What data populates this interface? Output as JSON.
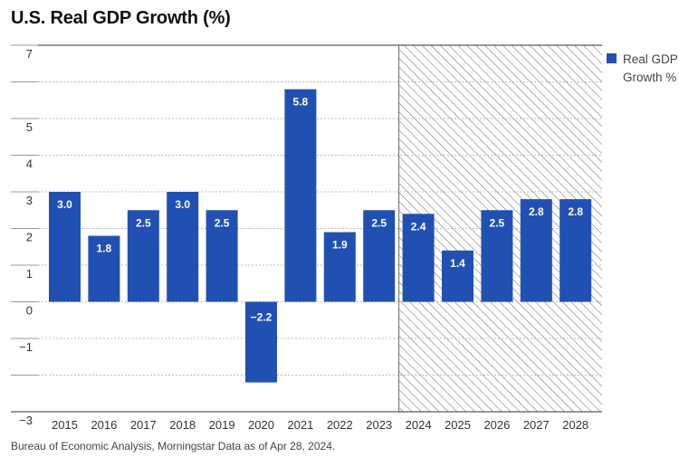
{
  "title": "U.S. Real GDP Growth (%)",
  "footnote": "Bureau of Economic Analysis, Morningstar Data as of Apr 28, 2024.",
  "colors": {
    "bar": "#2150b3",
    "grid": "#bbbbbb",
    "axis": "#333333",
    "hatch": "#666666"
  },
  "chart_data": {
    "type": "bar",
    "title": "U.S. Real GDP Growth (%)",
    "xlabel": "",
    "ylabel": "",
    "categories": [
      "2015",
      "2016",
      "2017",
      "2018",
      "2019",
      "2020",
      "2021",
      "2022",
      "2023",
      "2024",
      "2025",
      "2026",
      "2027",
      "2028"
    ],
    "series": [
      {
        "name": "Real GDP Growth %",
        "values": [
          3.0,
          1.8,
          2.5,
          3.0,
          2.5,
          -2.2,
          5.8,
          1.9,
          2.5,
          2.4,
          1.4,
          2.5,
          2.8,
          2.8
        ]
      }
    ],
    "data_labels": [
      "3.0",
      "1.8",
      "2.5",
      "3.0",
      "2.5",
      "−2.2",
      "5.8",
      "1.9",
      "2.5",
      "2.4",
      "1.4",
      "2.5",
      "2.8",
      "2.8"
    ],
    "ylim": [
      -3,
      7
    ],
    "yticks": [
      7,
      6,
      5,
      4,
      3,
      2,
      1,
      0,
      -1,
      -2,
      -3
    ],
    "ytick_labels": [
      "7",
      "",
      "5",
      "4",
      "3",
      "2",
      "1",
      "0",
      "−1",
      "",
      "−3"
    ],
    "grid": true,
    "legend": {
      "position": "right",
      "entries": [
        "Real GDP Growth %"
      ]
    },
    "forecast_shading": {
      "from_category": "2024",
      "to_category": "2028",
      "style": "diagonal-hatch"
    }
  },
  "legend": {
    "label": "Real GDP Growth %"
  }
}
